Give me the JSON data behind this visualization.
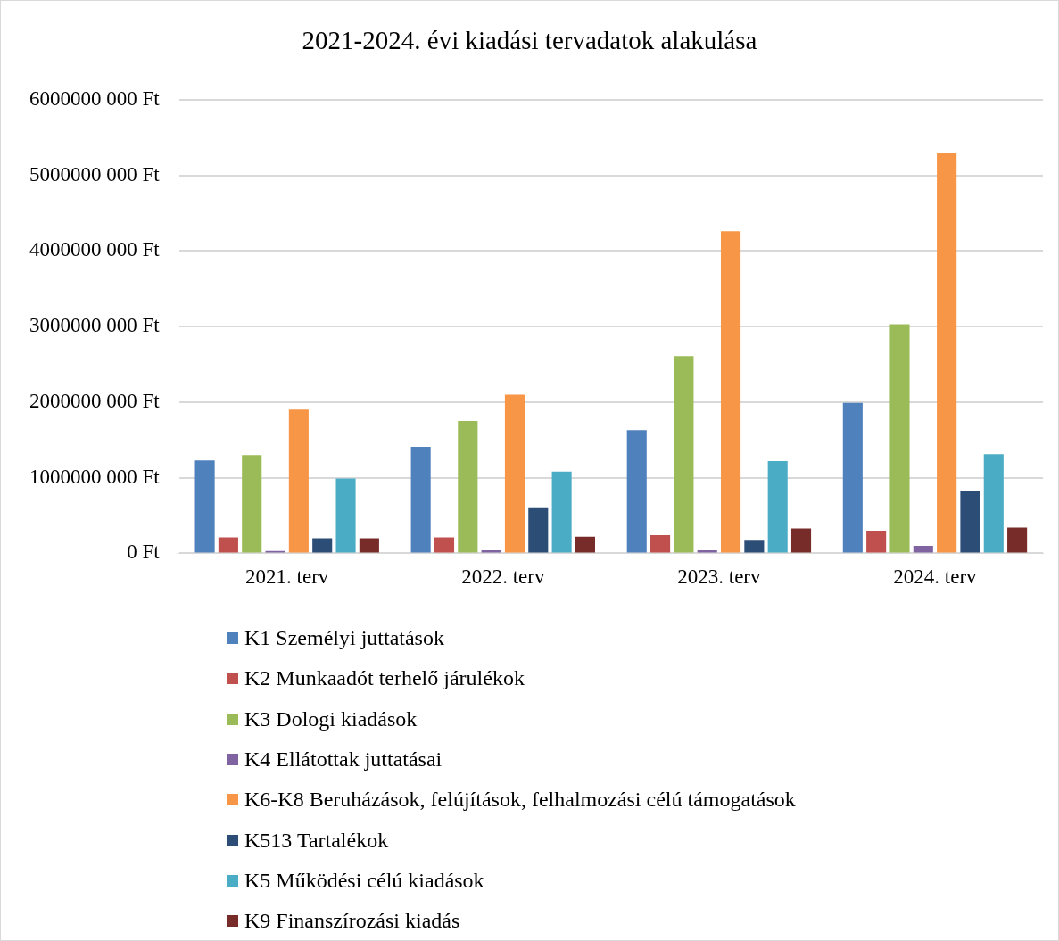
{
  "chart_data": {
    "type": "bar",
    "title": "2021-2024. évi kiadási tervadatok alakulása",
    "categories": [
      "2021. terv",
      "2022. terv",
      "2023. terv",
      "2024. terv"
    ],
    "series": [
      {
        "name": "K1 Személyi juttatások",
        "color": "#4f81bd",
        "values": [
          1230000000,
          1410000000,
          1630000000,
          1990000000
        ]
      },
      {
        "name": "K2 Munkaadót terhelő járulékok",
        "color": "#c0504d",
        "values": [
          210000000,
          210000000,
          240000000,
          300000000
        ]
      },
      {
        "name": "K3 Dologi kiadások",
        "color": "#9bbb59",
        "values": [
          1300000000,
          1750000000,
          2610000000,
          3030000000
        ]
      },
      {
        "name": "K4 Ellátottak juttatásai",
        "color": "#8064a2",
        "values": [
          30000000,
          40000000,
          40000000,
          100000000
        ]
      },
      {
        "name": "K6-K8 Beruházások, felújítások, felhalmozási célú támogatások",
        "color": "#f79646",
        "values": [
          1900000000,
          2100000000,
          4260000000,
          5300000000
        ]
      },
      {
        "name": "K513 Tartalékok",
        "color": "#2c4d75",
        "values": [
          200000000,
          610000000,
          180000000,
          820000000
        ]
      },
      {
        "name": "K5 Működési célú kiadások",
        "color": "#4bacc6",
        "values": [
          990000000,
          1080000000,
          1220000000,
          1310000000
        ]
      },
      {
        "name": "K9 Finanszírozási kiadás",
        "color": "#772c2a",
        "values": [
          200000000,
          220000000,
          330000000,
          340000000
        ]
      }
    ],
    "ylim": [
      0,
      6000000000
    ],
    "yticks": [
      {
        "value": 0,
        "label": "0 Ft"
      },
      {
        "value": 1000000000,
        "label": "1000000 000 Ft"
      },
      {
        "value": 2000000000,
        "label": "2000000 000 Ft"
      },
      {
        "value": 3000000000,
        "label": "3000000 000 Ft"
      },
      {
        "value": 4000000000,
        "label": "4000000 000 Ft"
      },
      {
        "value": 5000000000,
        "label": "5000000 000 Ft"
      },
      {
        "value": 6000000000,
        "label": "6000000 000 Ft"
      }
    ],
    "grid": "y",
    "legend": "bottom"
  }
}
